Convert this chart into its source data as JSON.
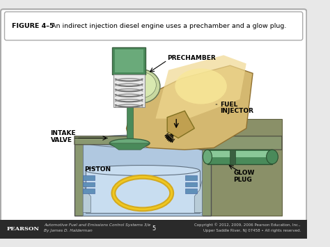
{
  "title_bold": "FIGURE 4–5",
  "title_rest": " An indirect injection diesel engine uses a prechamber and a glow plug.",
  "bg_color": "#e8e8e8",
  "panel_bg": "#ffffff",
  "border_color": "#aaaaaa",
  "footer_bg": "#2a2a2a",
  "footer_left1": "Automotive Fuel and Emissions Control Systems 3/e",
  "footer_left2": "By James D. Halderman",
  "footer_right1": "Copyright © 2012, 2009, 2006 Pearson Education, Inc.,",
  "footer_right2": "Upper Saddle River, NJ 07458 • All rights reserved.",
  "footer_page": "5",
  "pearson_color": "#1a1a1a",
  "green_dark": "#4a8a5a",
  "green_mid": "#6aaa7a",
  "green_light": "#8ac898",
  "gold_dark": "#b89020",
  "gold_mid": "#d4a830",
  "gold_light": "#f0cc60",
  "tan_body": "#d4b870",
  "tan_light": "#f0d890",
  "gray_engine": "#8a9870",
  "blue_cylinder": "#b0c8e0",
  "blue_piston": "#c8ddf0",
  "blue_ring": "#6090b8",
  "gray_wall": "#8a9068",
  "white": "#ffffff",
  "black": "#000000",
  "silver": "#c0c8c0",
  "yellow_piston_ring": "#d4aa20"
}
